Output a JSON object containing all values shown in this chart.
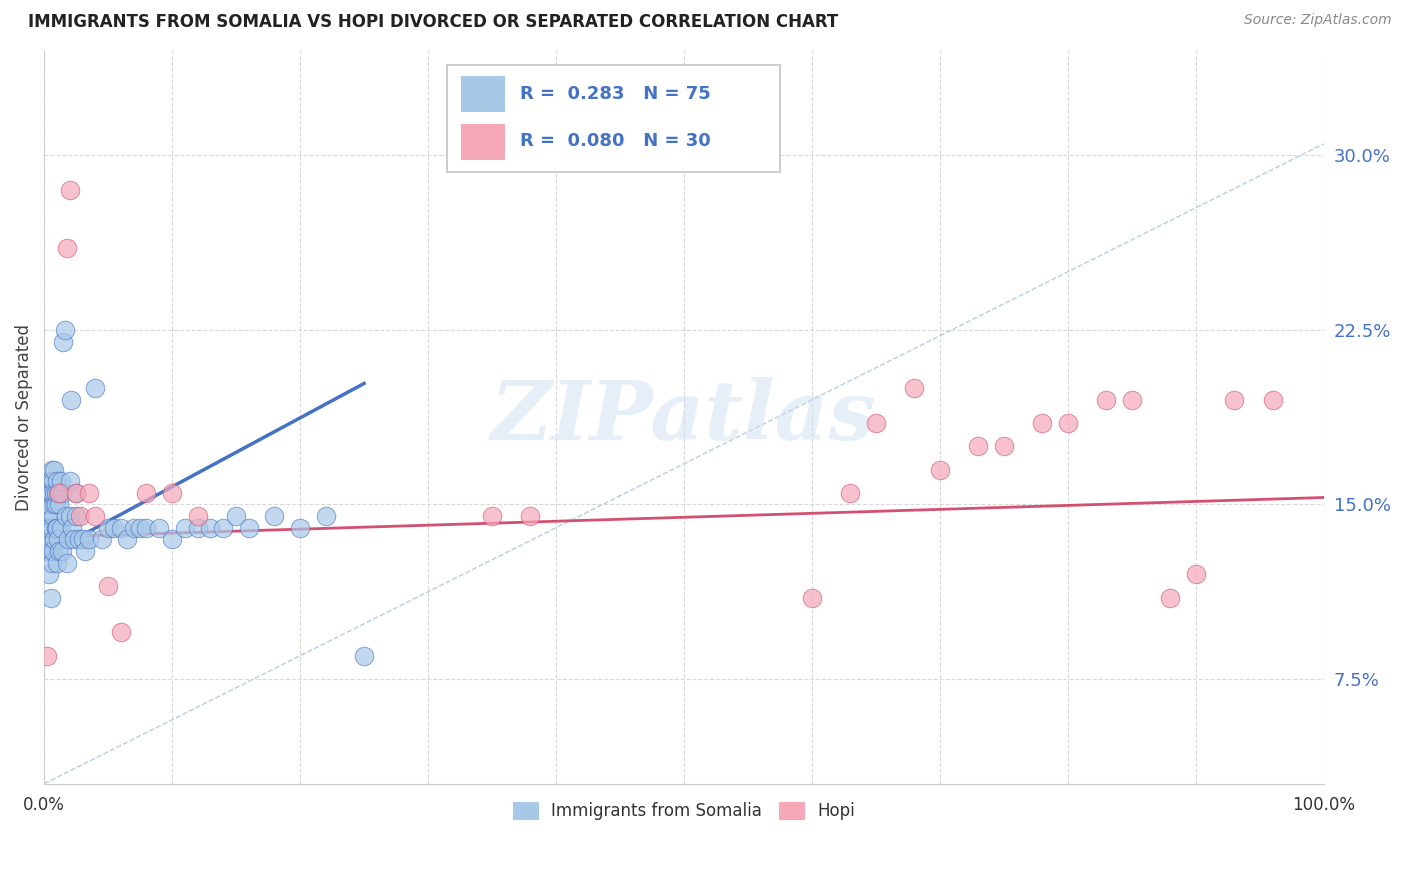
{
  "title": "IMMIGRANTS FROM SOMALIA VS HOPI DIVORCED OR SEPARATED CORRELATION CHART",
  "source": "Source: ZipAtlas.com",
  "ylabel": "Divorced or Separated",
  "ytick_values": [
    0.075,
    0.15,
    0.225,
    0.3
  ],
  "xlim": [
    0.0,
    1.0
  ],
  "ylim": [
    0.03,
    0.345
  ],
  "color_somalia": "#a8c8e8",
  "color_hopi": "#f4a8b8",
  "color_somalia_line": "#4472c4",
  "color_hopi_line": "#d45070",
  "color_dashed": "#b0c8e0",
  "watermark": "ZIPatlas",
  "somalia_scatter_x": [
    0.001,
    0.001,
    0.002,
    0.002,
    0.003,
    0.003,
    0.003,
    0.004,
    0.004,
    0.004,
    0.005,
    0.005,
    0.005,
    0.006,
    0.006,
    0.006,
    0.006,
    0.007,
    0.007,
    0.007,
    0.008,
    0.008,
    0.008,
    0.008,
    0.009,
    0.009,
    0.009,
    0.01,
    0.01,
    0.01,
    0.011,
    0.011,
    0.012,
    0.012,
    0.013,
    0.013,
    0.014,
    0.014,
    0.015,
    0.016,
    0.017,
    0.018,
    0.019,
    0.02,
    0.02,
    0.021,
    0.022,
    0.023,
    0.025,
    0.025,
    0.027,
    0.03,
    0.032,
    0.035,
    0.04,
    0.045,
    0.05,
    0.055,
    0.06,
    0.065,
    0.07,
    0.075,
    0.08,
    0.09,
    0.1,
    0.11,
    0.12,
    0.13,
    0.14,
    0.15,
    0.16,
    0.18,
    0.2,
    0.22,
    0.25
  ],
  "somalia_scatter_y": [
    0.14,
    0.155,
    0.13,
    0.145,
    0.135,
    0.15,
    0.16,
    0.12,
    0.14,
    0.155,
    0.11,
    0.13,
    0.155,
    0.125,
    0.14,
    0.155,
    0.165,
    0.13,
    0.145,
    0.16,
    0.135,
    0.15,
    0.155,
    0.165,
    0.14,
    0.15,
    0.155,
    0.125,
    0.14,
    0.16,
    0.135,
    0.155,
    0.13,
    0.15,
    0.14,
    0.16,
    0.13,
    0.155,
    0.22,
    0.225,
    0.145,
    0.125,
    0.135,
    0.145,
    0.16,
    0.195,
    0.14,
    0.135,
    0.145,
    0.155,
    0.135,
    0.135,
    0.13,
    0.135,
    0.2,
    0.135,
    0.14,
    0.14,
    0.14,
    0.135,
    0.14,
    0.14,
    0.14,
    0.14,
    0.135,
    0.14,
    0.14,
    0.14,
    0.14,
    0.145,
    0.14,
    0.145,
    0.14,
    0.145,
    0.085
  ],
  "hopi_scatter_x": [
    0.002,
    0.012,
    0.018,
    0.02,
    0.025,
    0.028,
    0.035,
    0.04,
    0.05,
    0.06,
    0.08,
    0.1,
    0.12,
    0.35,
    0.38,
    0.6,
    0.63,
    0.65,
    0.68,
    0.7,
    0.73,
    0.75,
    0.78,
    0.8,
    0.83,
    0.85,
    0.88,
    0.9,
    0.93,
    0.96
  ],
  "hopi_scatter_y": [
    0.085,
    0.155,
    0.26,
    0.285,
    0.155,
    0.145,
    0.155,
    0.145,
    0.115,
    0.095,
    0.155,
    0.155,
    0.145,
    0.145,
    0.145,
    0.11,
    0.155,
    0.185,
    0.2,
    0.165,
    0.175,
    0.175,
    0.185,
    0.185,
    0.195,
    0.195,
    0.11,
    0.12,
    0.195,
    0.195
  ],
  "somalia_trend_x": [
    0.0,
    0.25
  ],
  "somalia_trend_y": [
    0.128,
    0.202
  ],
  "hopi_trend_x": [
    0.0,
    1.0
  ],
  "hopi_trend_y": [
    0.136,
    0.153
  ],
  "dashed_line_x": [
    0.0,
    1.0
  ],
  "dashed_line_y": [
    0.03,
    0.305
  ],
  "background_color": "#ffffff",
  "grid_color": "#d0d0d0"
}
